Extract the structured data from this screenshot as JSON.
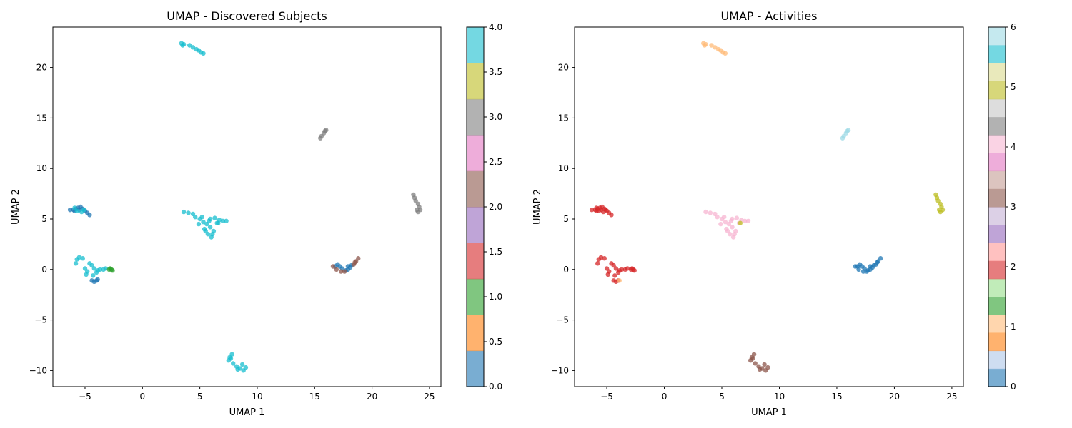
{
  "chart_data": [
    {
      "type": "scatter",
      "title": "UMAP - Discovered Subjects",
      "xlabel": "UMAP 1",
      "ylabel": "UMAP 2",
      "xlim": [
        -7.8,
        26.0
      ],
      "ylim": [
        -11.6,
        24.0
      ],
      "xticks": [
        -5,
        0,
        5,
        10,
        15,
        20,
        25
      ],
      "yticks": [
        -10,
        -5,
        0,
        5,
        10,
        15,
        20
      ],
      "grid": false,
      "colorbar": {
        "range": [
          0,
          4
        ],
        "ticks": [
          "0.0",
          "0.5",
          "1.0",
          "1.5",
          "2.0",
          "2.5",
          "3.0",
          "3.5",
          "4.0"
        ],
        "tick_values": [
          0,
          0.5,
          1,
          1.5,
          2,
          2.5,
          3,
          3.5,
          4
        ],
        "colors": [
          "#1f77b4",
          "#ff7f0e",
          "#2ca02c",
          "#d62728",
          "#9467bd",
          "#8c564b",
          "#e377c2",
          "#7f7f7f",
          "#bcbd22",
          "#17becf"
        ]
      },
      "clusters": [
        {
          "points": [
            [
              3.4,
              22.4
            ],
            [
              3.6,
              22.3
            ],
            [
              3.5,
              22.2
            ],
            [
              4.1,
              22.2
            ],
            [
              4.4,
              22.0
            ],
            [
              4.7,
              21.8
            ],
            [
              4.9,
              21.7
            ],
            [
              5.1,
              21.5
            ],
            [
              5.3,
              21.4
            ]
          ],
          "color": "#17becf"
        },
        {
          "points": [
            [
              15.5,
              13.0
            ],
            [
              15.6,
              13.2
            ],
            [
              15.8,
              13.5
            ],
            [
              15.9,
              13.7
            ],
            [
              16.0,
              13.8
            ]
          ],
          "color": "#7f7f7f"
        },
        {
          "points": [
            [
              23.6,
              7.4
            ],
            [
              23.7,
              7.1
            ],
            [
              23.8,
              6.8
            ],
            [
              24.0,
              6.5
            ],
            [
              24.1,
              6.2
            ],
            [
              24.2,
              5.9
            ],
            [
              24.0,
              5.7
            ],
            [
              23.9,
              5.9
            ]
          ],
          "color": "#7f7f7f"
        },
        {
          "points": [
            [
              -6.3,
              5.9
            ],
            [
              -6.0,
              5.9
            ],
            [
              -5.8,
              6.0
            ],
            [
              -5.6,
              6.1
            ],
            [
              -5.4,
              6.2
            ],
            [
              -5.2,
              6.0
            ],
            [
              -5.0,
              5.8
            ],
            [
              -4.8,
              5.6
            ],
            [
              -4.6,
              5.4
            ],
            [
              -5.5,
              5.9
            ],
            [
              -5.9,
              5.8
            ]
          ],
          "color": "#1f77b4"
        },
        {
          "points": [
            [
              -5.9,
              6.1
            ],
            [
              -5.7,
              5.8
            ],
            [
              -5.3,
              5.7
            ],
            [
              -5.1,
              5.9
            ]
          ],
          "color": "#17becf"
        },
        {
          "points": [
            [
              -5.8,
              0.6
            ],
            [
              -5.7,
              1.0
            ],
            [
              -5.5,
              1.2
            ],
            [
              -5.2,
              1.1
            ],
            [
              -5.0,
              0.1
            ],
            [
              -4.8,
              -0.2
            ],
            [
              -4.6,
              0.6
            ],
            [
              -4.4,
              0.4
            ],
            [
              -4.2,
              0.1
            ],
            [
              -4.0,
              -0.3
            ],
            [
              -3.7,
              0.0
            ],
            [
              -3.4,
              0.0
            ],
            [
              -3.2,
              0.1
            ],
            [
              -4.9,
              -0.5
            ],
            [
              -4.3,
              -0.6
            ],
            [
              -3.9,
              -0.1
            ]
          ],
          "color": "#17becf"
        },
        {
          "points": [
            [
              -4.4,
              -1.1
            ],
            [
              -4.2,
              -1.2
            ],
            [
              -4.0,
              -1.1
            ],
            [
              -3.9,
              -1.0
            ]
          ],
          "color": "#1f77b4"
        },
        {
          "points": [
            [
              -2.9,
              0.0
            ],
            [
              -2.7,
              0.0
            ],
            [
              -2.6,
              -0.1
            ],
            [
              -2.8,
              0.1
            ]
          ],
          "color": "#2ca02c"
        },
        {
          "points": [
            [
              3.6,
              5.7
            ],
            [
              4.0,
              5.6
            ],
            [
              4.4,
              5.5
            ],
            [
              4.6,
              5.2
            ],
            [
              5.0,
              5.0
            ],
            [
              5.3,
              4.7
            ],
            [
              5.6,
              4.5
            ],
            [
              5.9,
              4.2
            ],
            [
              6.2,
              3.8
            ],
            [
              6.0,
              3.2
            ],
            [
              5.7,
              3.5
            ],
            [
              5.4,
              4.0
            ],
            [
              5.8,
              4.8
            ],
            [
              6.3,
              5.1
            ],
            [
              6.7,
              4.9
            ],
            [
              7.0,
              4.8
            ],
            [
              7.3,
              4.8
            ],
            [
              6.5,
              4.6
            ],
            [
              6.1,
              3.5
            ],
            [
              5.5,
              3.8
            ],
            [
              4.9,
              4.5
            ],
            [
              5.2,
              5.2
            ],
            [
              6.6,
              4.6
            ],
            [
              5.9,
              5.0
            ]
          ],
          "color": "#17becf"
        },
        {
          "points": [
            [
              16.8,
              0.3
            ],
            [
              17.0,
              0.5
            ],
            [
              17.2,
              0.3
            ],
            [
              17.4,
              0.1
            ],
            [
              17.7,
              -0.1
            ],
            [
              17.9,
              0.3
            ],
            [
              18.1,
              0.2
            ],
            [
              18.2,
              0.4
            ],
            [
              17.9,
              0.0
            ]
          ],
          "color": "#1f77b4"
        },
        {
          "points": [
            [
              16.6,
              0.3
            ],
            [
              16.9,
              0.0
            ],
            [
              17.3,
              -0.2
            ],
            [
              17.6,
              -0.2
            ],
            [
              18.4,
              0.5
            ],
            [
              18.6,
              0.8
            ],
            [
              18.8,
              1.1
            ],
            [
              18.5,
              0.7
            ]
          ],
          "color": "#8c564b"
        },
        {
          "points": [
            [
              7.8,
              -8.4
            ],
            [
              7.7,
              -8.8
            ],
            [
              7.5,
              -9.0
            ],
            [
              7.9,
              -9.3
            ],
            [
              8.2,
              -9.6
            ],
            [
              8.5,
              -9.8
            ],
            [
              8.8,
              -10.0
            ],
            [
              9.0,
              -9.7
            ],
            [
              8.7,
              -9.4
            ],
            [
              8.3,
              -9.9
            ],
            [
              7.6,
              -8.7
            ]
          ],
          "color": "#17becf"
        }
      ]
    },
    {
      "type": "scatter",
      "title": "UMAP - Activities",
      "xlabel": "UMAP 1",
      "ylabel": "UMAP 2",
      "xlim": [
        -7.8,
        26.0
      ],
      "ylim": [
        -11.6,
        24.0
      ],
      "xticks": [
        -5,
        0,
        5,
        10,
        15,
        20,
        25
      ],
      "yticks": [
        -10,
        -5,
        0,
        5,
        10,
        15,
        20
      ],
      "grid": false,
      "colorbar": {
        "range": [
          0,
          6
        ],
        "ticks": [
          "0",
          "1",
          "2",
          "3",
          "4",
          "5",
          "6"
        ],
        "tick_values": [
          0,
          1,
          2,
          3,
          4,
          5,
          6
        ],
        "colors": [
          "#1f77b4",
          "#aec7e8",
          "#ff7f0e",
          "#ffbb78",
          "#2ca02c",
          "#98df8a",
          "#d62728",
          "#ff9896",
          "#9467bd",
          "#c5b0d5",
          "#8c564b",
          "#c49c94",
          "#e377c2",
          "#f7b6d2",
          "#7f7f7f",
          "#c7c7c7",
          "#bcbd22",
          "#dbdb8d",
          "#17becf",
          "#9edae5"
        ]
      },
      "clusters": [
        {
          "points": [
            [
              3.4,
              22.4
            ],
            [
              3.6,
              22.3
            ],
            [
              3.5,
              22.2
            ],
            [
              4.1,
              22.2
            ],
            [
              4.4,
              22.0
            ],
            [
              4.7,
              21.8
            ],
            [
              4.9,
              21.7
            ],
            [
              5.1,
              21.5
            ],
            [
              5.3,
              21.4
            ]
          ],
          "color": "#ffbb78"
        },
        {
          "points": [
            [
              15.5,
              13.0
            ],
            [
              15.6,
              13.2
            ],
            [
              15.8,
              13.5
            ],
            [
              15.9,
              13.7
            ],
            [
              16.0,
              13.8
            ]
          ],
          "color": "#9edae5"
        },
        {
          "points": [
            [
              23.6,
              7.4
            ],
            [
              23.7,
              7.1
            ],
            [
              23.8,
              6.8
            ],
            [
              24.0,
              6.5
            ],
            [
              24.1,
              6.2
            ],
            [
              24.2,
              5.9
            ],
            [
              24.0,
              5.7
            ],
            [
              23.9,
              5.9
            ]
          ],
          "color": "#bcbd22"
        },
        {
          "points": [
            [
              -6.3,
              5.9
            ],
            [
              -6.0,
              5.9
            ],
            [
              -5.8,
              6.0
            ],
            [
              -5.6,
              6.1
            ],
            [
              -5.4,
              6.2
            ],
            [
              -5.2,
              6.0
            ],
            [
              -5.0,
              5.8
            ],
            [
              -4.8,
              5.6
            ],
            [
              -4.6,
              5.4
            ],
            [
              -5.5,
              5.9
            ],
            [
              -5.9,
              5.8
            ],
            [
              -5.9,
              6.1
            ],
            [
              -5.7,
              5.8
            ],
            [
              -5.3,
              5.7
            ],
            [
              -5.1,
              5.9
            ]
          ],
          "color": "#d62728"
        },
        {
          "points": [
            [
              -5.8,
              0.6
            ],
            [
              -5.7,
              1.0
            ],
            [
              -5.5,
              1.2
            ],
            [
              -5.2,
              1.1
            ],
            [
              -5.0,
              0.1
            ],
            [
              -4.8,
              -0.2
            ],
            [
              -4.6,
              0.6
            ],
            [
              -4.4,
              0.4
            ],
            [
              -4.2,
              0.1
            ],
            [
              -4.0,
              -0.3
            ],
            [
              -3.7,
              0.0
            ],
            [
              -3.4,
              0.0
            ],
            [
              -3.2,
              0.1
            ],
            [
              -4.9,
              -0.5
            ],
            [
              -4.3,
              -0.6
            ],
            [
              -3.9,
              -0.1
            ],
            [
              -4.4,
              -1.1
            ],
            [
              -4.2,
              -1.2
            ],
            [
              -4.0,
              -1.1
            ],
            [
              -2.9,
              0.0
            ],
            [
              -2.7,
              0.0
            ],
            [
              -2.6,
              -0.1
            ],
            [
              -2.8,
              0.1
            ]
          ],
          "color": "#d62728"
        },
        {
          "points": [
            [
              -3.9,
              -1.1
            ]
          ],
          "color": "#ffbb78"
        },
        {
          "points": [
            [
              3.6,
              5.7
            ],
            [
              4.0,
              5.6
            ],
            [
              4.4,
              5.5
            ],
            [
              4.6,
              5.2
            ],
            [
              5.0,
              5.0
            ],
            [
              5.3,
              4.7
            ],
            [
              5.6,
              4.5
            ],
            [
              5.9,
              4.2
            ],
            [
              6.2,
              3.8
            ],
            [
              6.0,
              3.2
            ],
            [
              5.7,
              3.5
            ],
            [
              5.4,
              4.0
            ],
            [
              5.8,
              4.8
            ],
            [
              6.3,
              5.1
            ],
            [
              6.7,
              4.9
            ],
            [
              7.0,
              4.8
            ],
            [
              7.3,
              4.8
            ],
            [
              6.5,
              4.6
            ],
            [
              6.1,
              3.5
            ],
            [
              5.5,
              3.8
            ],
            [
              4.9,
              4.5
            ],
            [
              5.2,
              5.2
            ],
            [
              5.9,
              5.0
            ]
          ],
          "color": "#f7b6d2"
        },
        {
          "points": [
            [
              6.6,
              4.6
            ]
          ],
          "color": "#bcbd22"
        },
        {
          "points": [
            [
              16.8,
              0.3
            ],
            [
              17.0,
              0.5
            ],
            [
              17.2,
              0.3
            ],
            [
              17.4,
              0.1
            ],
            [
              17.7,
              -0.1
            ],
            [
              17.9,
              0.3
            ],
            [
              18.1,
              0.2
            ],
            [
              18.2,
              0.4
            ],
            [
              17.9,
              0.0
            ],
            [
              16.6,
              0.3
            ],
            [
              16.9,
              0.0
            ],
            [
              17.3,
              -0.2
            ],
            [
              17.6,
              -0.2
            ],
            [
              18.4,
              0.5
            ],
            [
              18.6,
              0.8
            ],
            [
              18.8,
              1.1
            ],
            [
              18.5,
              0.7
            ]
          ],
          "color": "#1f77b4"
        },
        {
          "points": [
            [
              7.8,
              -8.4
            ],
            [
              7.7,
              -8.8
            ],
            [
              7.5,
              -9.0
            ],
            [
              7.9,
              -9.3
            ],
            [
              8.2,
              -9.6
            ],
            [
              8.5,
              -9.8
            ],
            [
              8.8,
              -10.0
            ],
            [
              9.0,
              -9.7
            ],
            [
              8.7,
              -9.4
            ],
            [
              8.3,
              -9.9
            ],
            [
              7.6,
              -8.7
            ]
          ],
          "color": "#8c564b"
        }
      ]
    }
  ]
}
